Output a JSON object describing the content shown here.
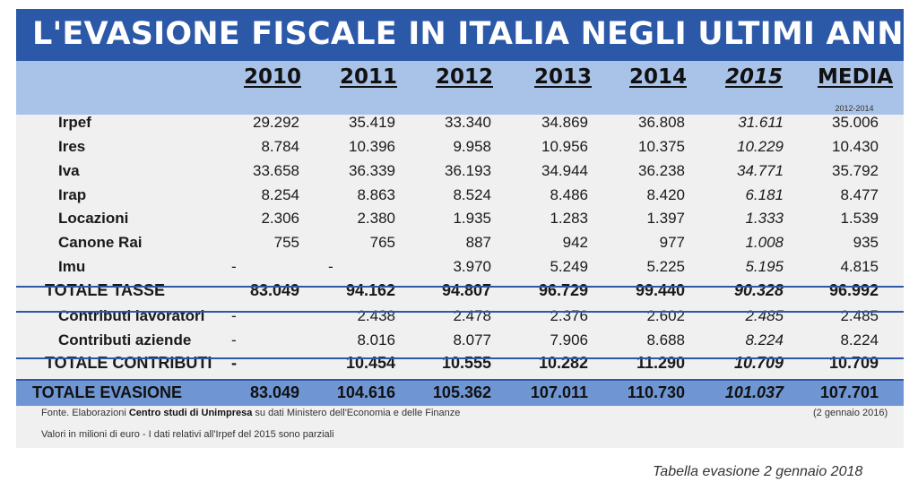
{
  "title": "L'EVASIONE FISCALE IN ITALIA NEGLI ULTIMI ANNI",
  "columns": [
    "2010",
    "2011",
    "2012",
    "2013",
    "2014",
    "2015",
    "MEDIA"
  ],
  "media_subtitle": "2012-2014",
  "rows": [
    {
      "label": "Irpef",
      "values": [
        "29.292",
        "35.419",
        "33.340",
        "34.869",
        "36.808",
        "31.611",
        "35.006"
      ]
    },
    {
      "label": "Ires",
      "values": [
        "8.784",
        "10.396",
        "9.958",
        "10.956",
        "10.375",
        "10.229",
        "10.430"
      ]
    },
    {
      "label": "Iva",
      "values": [
        "33.658",
        "36.339",
        "36.193",
        "34.944",
        "36.238",
        "34.771",
        "35.792"
      ]
    },
    {
      "label": "Irap",
      "values": [
        "8.254",
        "8.863",
        "8.524",
        "8.486",
        "8.420",
        "6.181",
        "8.477"
      ]
    },
    {
      "label": "Locazioni",
      "values": [
        "2.306",
        "2.380",
        "1.935",
        "1.283",
        "1.397",
        "1.333",
        "1.539"
      ]
    },
    {
      "label": "Canone Rai",
      "values": [
        "755",
        "765",
        "887",
        "942",
        "977",
        "1.008",
        "935"
      ]
    },
    {
      "label": "Imu",
      "values": [
        "-",
        "-",
        "3.970",
        "5.249",
        "5.225",
        "5.195",
        "4.815"
      ]
    },
    {
      "label": "TOTALE TASSE",
      "values": [
        "83.049",
        "94.162",
        "94.807",
        "96.729",
        "99.440",
        "90.328",
        "96.992"
      ]
    },
    {
      "label": "Contributi lavoratori",
      "values": [
        "-",
        "2.438",
        "2.478",
        "2.376",
        "2.602",
        "2.485",
        "2.485"
      ]
    },
    {
      "label": "Contributi aziende",
      "values": [
        "-",
        "8.016",
        "8.077",
        "7.906",
        "8.688",
        "8.224",
        "8.224"
      ]
    },
    {
      "label": "TOTALE CONTRIBUTI",
      "values": [
        "-",
        "10.454",
        "10.555",
        "10.282",
        "11.290",
        "10.709",
        "10.709"
      ]
    },
    {
      "label": "TOTALE EVASIONE",
      "values": [
        "83.049",
        "104.616",
        "105.362",
        "107.011",
        "110.730",
        "101.037",
        "107.701"
      ]
    }
  ],
  "footnote": {
    "source_prefix": "Fonte. Elaborazioni ",
    "source_bold": "Centro studi di Unimpresa",
    "source_suffix": " su dati Ministero dell'Economia e delle Finanze",
    "date": "(2 gennaio 2016)",
    "units": "Valori in milioni di euro - I dati relativi all'Irpef del 2015 sono parziali"
  },
  "caption": "Tabella evasione 2 gennaio 2018"
}
